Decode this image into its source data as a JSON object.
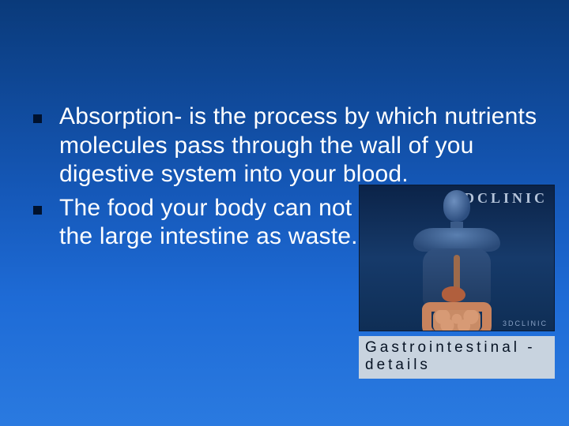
{
  "slide": {
    "bullets": [
      "Absorption- is the process by which nutrients molecules pass through the wall of you digestive system into your blood.",
      "The food your body can not use collects in the large intestine as waste."
    ],
    "bullet_marker_color": "#00122e",
    "text_color": "#ffffff",
    "font_size_pt": 30,
    "background_gradient": [
      "#0a3a7a",
      "#1558b8",
      "#1e6bd6",
      "#2a7ae0"
    ]
  },
  "figure": {
    "watermark_top": "3DCLINIC",
    "watermark_bottom": "3DCLINIC",
    "caption": "Gastrointestinal - details",
    "caption_bg": "#c8d3df",
    "caption_color": "#071324",
    "organ_colors": {
      "esophagus": "#9d6a4a",
      "stomach": "#b15f3d",
      "large_intestine": "#c9835d",
      "small_intestine": "#d79a75"
    }
  }
}
